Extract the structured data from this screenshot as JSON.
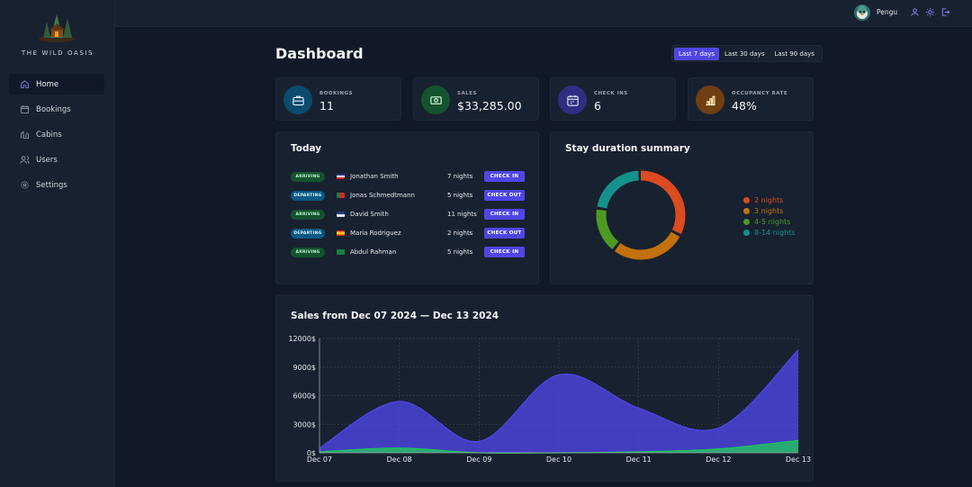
{
  "brand": {
    "name": "THE WILD OASIS"
  },
  "sidebar": {
    "items": [
      {
        "label": "Home",
        "icon": "home-icon",
        "active": true
      },
      {
        "label": "Bookings",
        "icon": "calendar-icon",
        "active": false
      },
      {
        "label": "Cabins",
        "icon": "cabin-icon",
        "active": false
      },
      {
        "label": "Users",
        "icon": "users-icon",
        "active": false
      },
      {
        "label": "Settings",
        "icon": "gear-icon",
        "active": false
      }
    ]
  },
  "header": {
    "username": "Pengu",
    "icons": [
      "user-icon",
      "sun-icon",
      "logout-icon"
    ]
  },
  "main": {
    "title": "Dashboard",
    "filters": [
      "Last 7 days",
      "Last 30 days",
      "Last 90 days"
    ],
    "active_filter": "Last 7 days",
    "stats": [
      {
        "label": "Bookings",
        "value": "11",
        "icon": "briefcase-icon",
        "color": "#0c4a6e"
      },
      {
        "label": "Sales",
        "value": "$33,285.00",
        "icon": "banknotes-icon",
        "color": "#14532d"
      },
      {
        "label": "Check ins",
        "value": "6",
        "icon": "calendar-days-icon",
        "color": "#312e81"
      },
      {
        "label": "Occupancy rate",
        "value": "48%",
        "icon": "chart-bar-icon",
        "color": "#713f12"
      }
    ],
    "today": {
      "title": "Today",
      "rows": [
        {
          "status": "ARRIVING",
          "name": "Jonathan Smith",
          "nights": "7 nights",
          "action": "CHECK IN"
        },
        {
          "status": "DEPARTING",
          "name": "Jonas Schmedtmann",
          "nights": "5 nights",
          "action": "CHECK OUT"
        },
        {
          "status": "ARRIVING",
          "name": "David Smith",
          "nights": "11 nights",
          "action": "CHECK IN"
        },
        {
          "status": "DEPARTING",
          "name": "Maria Rodriguez",
          "nights": "2 nights",
          "action": "CHECK OUT"
        },
        {
          "status": "ARRIVING",
          "name": "Abdul Rahman",
          "nights": "5 nights",
          "action": "CHECK IN"
        }
      ]
    },
    "duration": {
      "title": "Stay duration summary"
    },
    "sales": {
      "title": "Sales from Dec 07 2024 — Dec 13 2024"
    }
  },
  "chart_data": [
    {
      "type": "pie",
      "categories": [
        "2 nights",
        "3 nights",
        "4-5 nights",
        "8-14 nights"
      ],
      "values": [
        33,
        28,
        17,
        22
      ],
      "colors": [
        "#dc4a1f",
        "#c2710c",
        "#4d9a22",
        "#14918a"
      ],
      "legend": "right"
    },
    {
      "type": "area",
      "x": [
        "Dec 07",
        "Dec 08",
        "Dec 09",
        "Dec 10",
        "Dec 11",
        "Dec 12",
        "Dec 13"
      ],
      "series": [
        {
          "values": [
            500,
            5400,
            1200,
            8200,
            4700,
            2600,
            10800
          ],
          "color": "#4f46e5"
        },
        {
          "values": [
            100,
            500,
            0,
            0,
            100,
            400,
            1300
          ],
          "color": "#22c55e"
        }
      ],
      "yticks": [
        "0$",
        "3000$",
        "6000$",
        "9000$",
        "12000$"
      ],
      "ylim": [
        0,
        12000
      ],
      "grid": true
    }
  ]
}
